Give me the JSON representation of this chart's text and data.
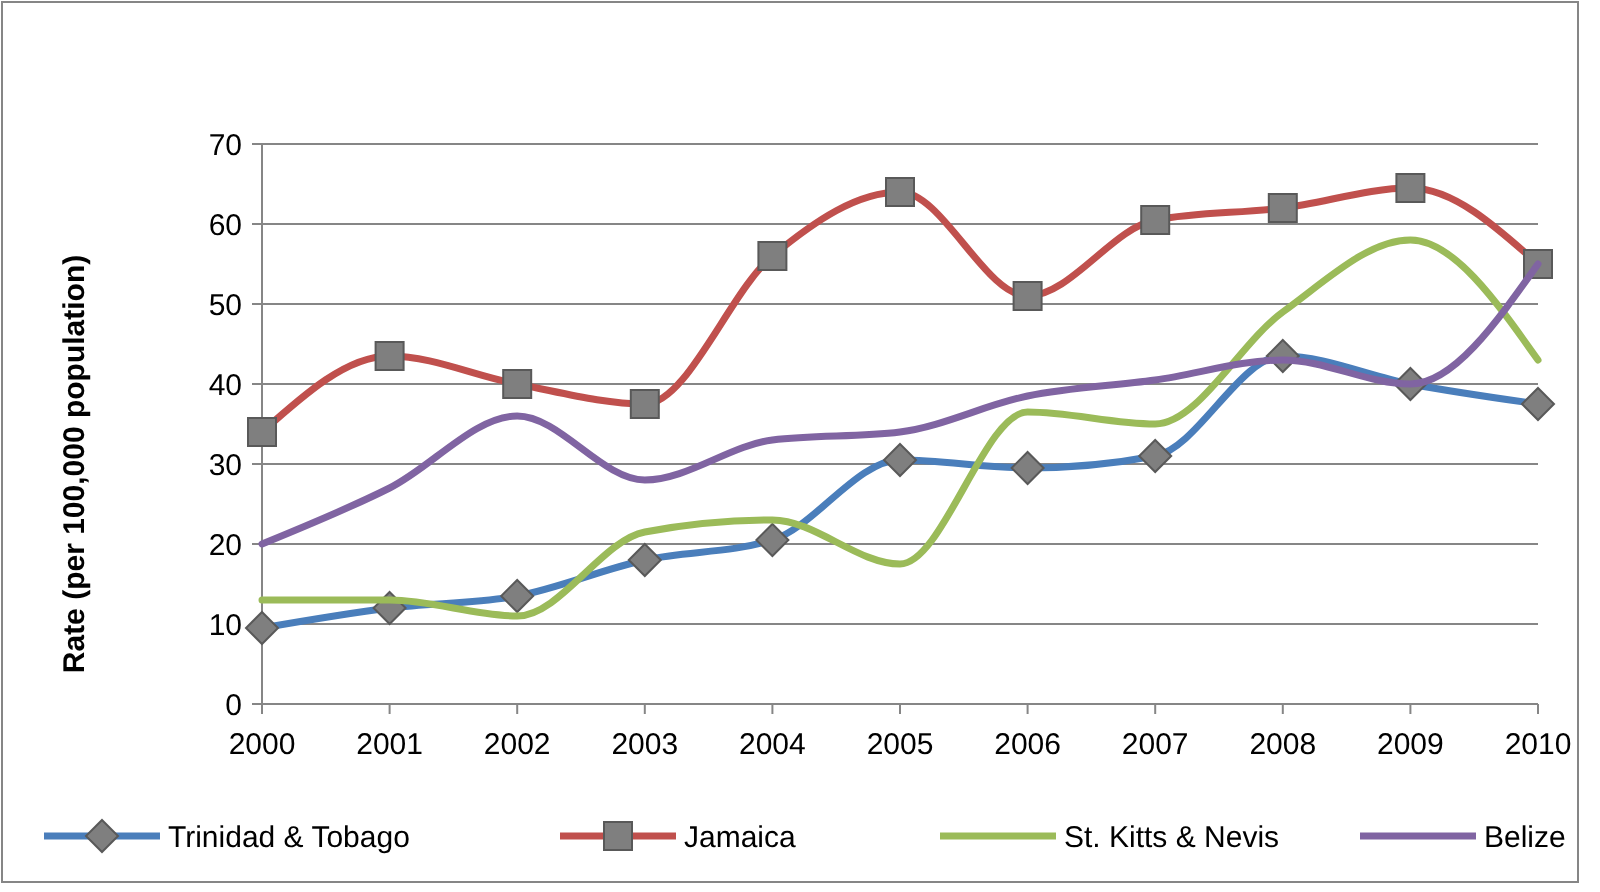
{
  "chart_data": {
    "type": "line",
    "ylabel": "Rate (per 100,000 population)",
    "categories": [
      "2000",
      "2001",
      "2002",
      "2003",
      "2004",
      "2005",
      "2006",
      "2007",
      "2008",
      "2009",
      "2010"
    ],
    "series": [
      {
        "name": "Trinidad & Tobago",
        "color": "#4a7ebb",
        "marker": "diamond",
        "values": [
          9.5,
          12,
          13.5,
          18,
          20.5,
          30.5,
          29.5,
          31,
          43.5,
          40,
          37.5
        ]
      },
      {
        "name": "Jamaica",
        "color": "#c0504d",
        "marker": "square",
        "values": [
          34,
          43.5,
          40,
          37.5,
          56,
          64,
          51,
          60.5,
          62,
          64.5,
          55
        ]
      },
      {
        "name": "St. Kitts & Nevis",
        "color": "#9bbb59",
        "marker": "none",
        "values": [
          13,
          13,
          11,
          21.5,
          23,
          17.5,
          36.5,
          35,
          49,
          58,
          43
        ]
      },
      {
        "name": "Belize",
        "color": "#8064a2",
        "marker": "none",
        "values": [
          20,
          27,
          36,
          28,
          33,
          34,
          38.5,
          40.5,
          43,
          40,
          55
        ]
      }
    ],
    "ylim": [
      0,
      70
    ],
    "yticks": [
      0,
      10,
      20,
      30,
      40,
      50,
      60,
      70
    ],
    "grid": "y",
    "legend": "bottom"
  }
}
